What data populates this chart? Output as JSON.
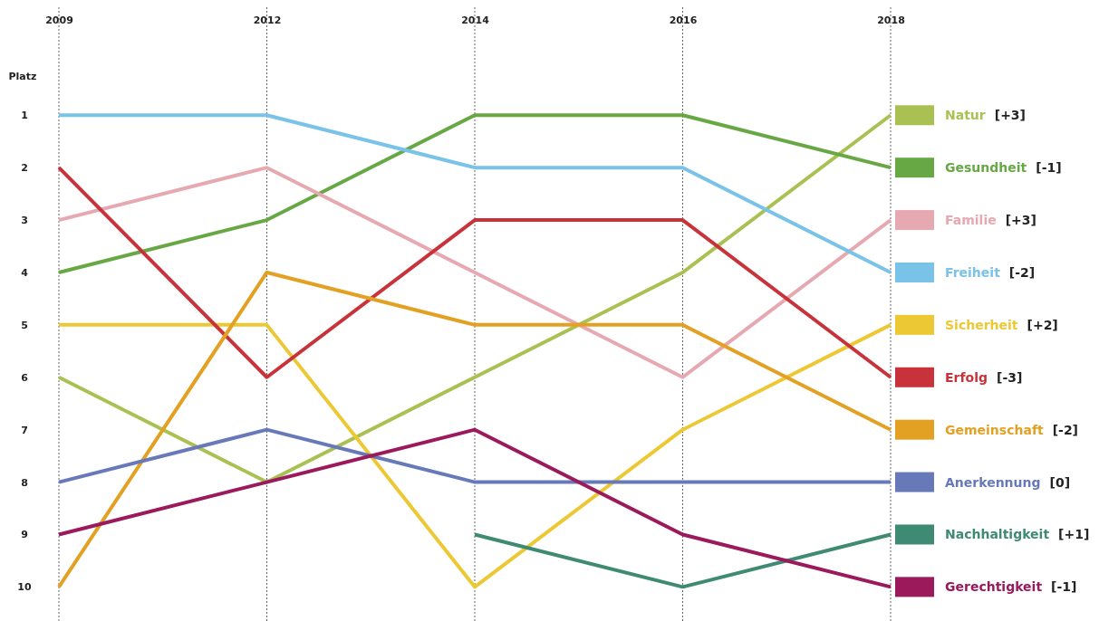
{
  "chart_data": {
    "type": "line",
    "ylabel": "Platz",
    "categories": [
      "2009",
      "2012",
      "2014",
      "2016",
      "2018"
    ],
    "ylim": [
      10.65,
      -1.06
    ],
    "annotations": [
      "[+3]",
      "[-1]",
      "[+3]",
      "[-2]",
      "[+2]",
      "[-3]",
      "[-2]",
      "[0]",
      "[+1]",
      "[-1]"
    ],
    "yticks": [
      1,
      2,
      3,
      4,
      5,
      6,
      7,
      8,
      9,
      10
    ],
    "grid": "x",
    "legend": "right",
    "marker": "none",
    "line_style": "solid",
    "series": [
      {
        "name": "Natur",
        "color": "#a9c152",
        "values": [
          6,
          8,
          6,
          4,
          1
        ]
      },
      {
        "name": "Gesundheit",
        "color": "#67a845",
        "values": [
          4,
          3,
          1,
          1,
          2
        ]
      },
      {
        "name": "Familie",
        "color": "#e7a9b1",
        "values": [
          3,
          2,
          4,
          6,
          3
        ]
      },
      {
        "name": "Freiheit",
        "color": "#79c2e8",
        "values": [
          1,
          1,
          2,
          2,
          4
        ]
      },
      {
        "name": "Sicherheit",
        "color": "#ecc934",
        "values": [
          5,
          5,
          10,
          7,
          5
        ]
      },
      {
        "name": "Erfolg",
        "color": "#c8333b",
        "values": [
          2,
          6,
          3,
          3,
          6
        ]
      },
      {
        "name": "Gemeinschaft",
        "color": "#e3a124",
        "values": [
          10,
          4,
          5,
          5,
          7
        ]
      },
      {
        "name": "Anerkennung",
        "color": "#6879b9",
        "values": [
          8,
          7,
          8,
          8,
          8
        ]
      },
      {
        "name": "Nachhaltigkeit",
        "color": "#3f8a72",
        "values": [
          null,
          null,
          9,
          10,
          9
        ]
      },
      {
        "name": "Gerechtigkeit",
        "color": "#9b1a5c",
        "values": [
          9,
          8,
          7,
          9,
          10
        ]
      }
    ]
  }
}
